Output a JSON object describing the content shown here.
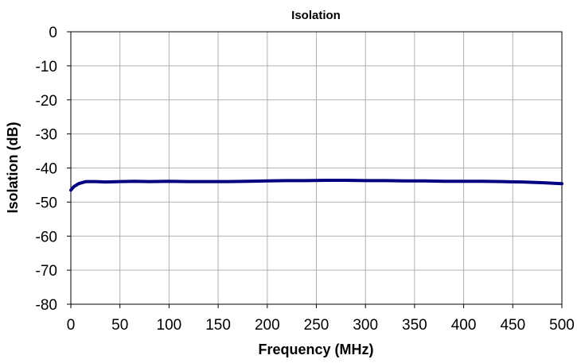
{
  "chart_data": {
    "type": "line",
    "title": "Isolation",
    "xlabel": "Frequency (MHz)",
    "ylabel": "Isolation (dB)",
    "xlim": [
      0,
      500
    ],
    "ylim": [
      -80,
      0
    ],
    "x_ticks": [
      0,
      50,
      100,
      150,
      200,
      250,
      300,
      350,
      400,
      450,
      500
    ],
    "y_ticks": [
      0,
      -10,
      -20,
      -30,
      -40,
      -50,
      -60,
      -70,
      -80
    ],
    "grid": true,
    "legend": "none",
    "series": [
      {
        "color": "#000080",
        "x": [
          0,
          3,
          8,
          15,
          25,
          35,
          50,
          65,
          80,
          100,
          120,
          140,
          160,
          180,
          200,
          220,
          240,
          260,
          280,
          300,
          320,
          340,
          360,
          380,
          400,
          420,
          440,
          460,
          480,
          500
        ],
        "y": [
          -46.5,
          -45.5,
          -44.6,
          -44.0,
          -44.0,
          -44.1,
          -44.0,
          -43.9,
          -44.0,
          -43.9,
          -44.0,
          -44.0,
          -44.0,
          -43.9,
          -43.8,
          -43.7,
          -43.7,
          -43.6,
          -43.6,
          -43.7,
          -43.7,
          -43.8,
          -43.8,
          -43.9,
          -43.9,
          -43.9,
          -44.0,
          -44.1,
          -44.3,
          -44.6
        ]
      }
    ]
  }
}
